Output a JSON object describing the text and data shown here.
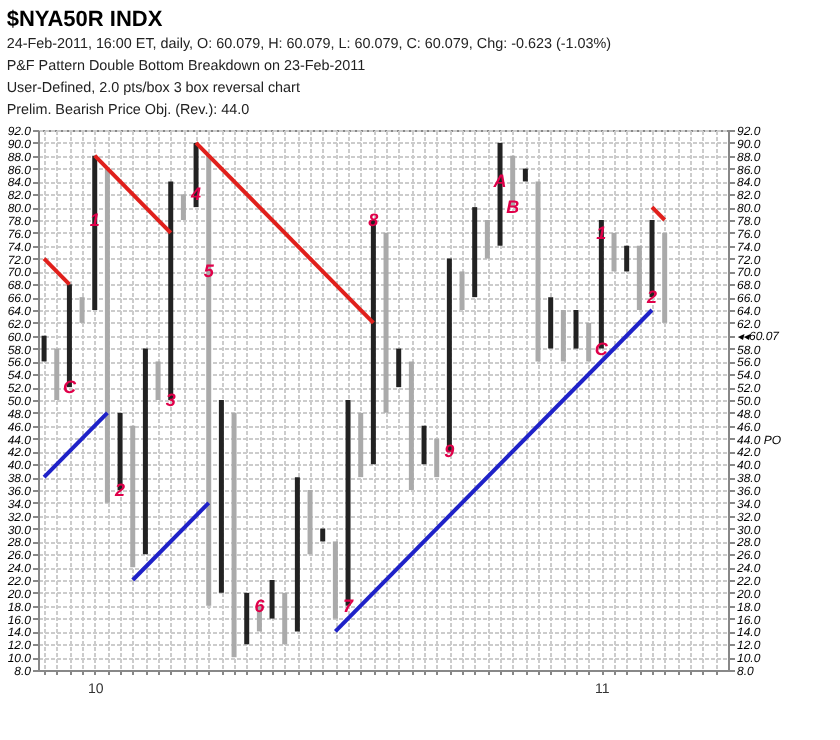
{
  "chart_data": {
    "type": "bar",
    "title": "$NYA50R INDX",
    "subtitle": [
      "24-Feb-2011, 16:00 ET, daily, O: 60.079, H: 60.079, L: 60.079, C: 60.079, Chg: -0.623 (-1.03%)",
      "P&F Pattern Double Bottom Breakdown on 23-Feb-2011",
      "User-Defined, 2.0 pts/box 3 box reversal chart",
      "Prelim. Bearish Price Obj. (Rev.): 44.0"
    ],
    "series": [
      {
        "x": [
          9.9,
          9.925,
          9.95,
          9.975,
          10,
          10.025,
          10.05,
          10.075,
          10.1,
          10.125,
          10.15,
          10.175,
          10.2,
          10.225,
          10.25,
          10.275,
          10.3,
          10.325,
          10.35,
          10.375,
          10.4,
          10.425,
          10.45,
          10.475,
          10.5,
          10.525,
          10.55,
          10.575,
          10.6,
          10.625,
          10.65,
          10.675,
          10.7,
          10.725,
          10.75,
          10.775,
          10.8,
          10.825,
          10.85,
          10.875,
          10.9,
          10.925,
          10.95,
          10.975,
          11,
          11.025,
          11.05,
          11.075,
          11.1,
          11.125
        ],
        "base": [
          56,
          50,
          52,
          62,
          64,
          34,
          36,
          24,
          26,
          50,
          50,
          78,
          80,
          18,
          20,
          10,
          12,
          14,
          16,
          12,
          14,
          26,
          28,
          16,
          18,
          38,
          40,
          48,
          52,
          36,
          40,
          38,
          42,
          64,
          66,
          72,
          74,
          80,
          84,
          56,
          58,
          56,
          58,
          56,
          58,
          70,
          70,
          64,
          66,
          62
        ],
        "values": [
          4,
          8,
          16,
          4,
          24,
          52,
          12,
          22,
          32,
          6,
          34,
          4,
          10,
          70,
          30,
          38,
          8,
          4,
          6,
          8,
          24,
          10,
          2,
          12,
          32,
          10,
          38,
          28,
          6,
          20,
          6,
          6,
          30,
          6,
          14,
          6,
          16,
          8,
          2,
          28,
          8,
          8,
          6,
          6,
          20,
          6,
          4,
          10,
          12,
          14
        ],
        "colors": [
          "#222222",
          "#aaaaaa",
          "#222222",
          "#aaaaaa",
          "#222222",
          "#aaaaaa",
          "#222222",
          "#aaaaaa",
          "#222222",
          "#aaaaaa",
          "#222222",
          "#aaaaaa",
          "#222222",
          "#aaaaaa",
          "#222222",
          "#aaaaaa",
          "#222222",
          "#aaaaaa",
          "#222222",
          "#aaaaaa",
          "#222222",
          "#aaaaaa",
          "#222222",
          "#aaaaaa",
          "#222222",
          "#aaaaaa",
          "#222222",
          "#aaaaaa",
          "#222222",
          "#aaaaaa",
          "#222222",
          "#aaaaaa",
          "#222222",
          "#aaaaaa",
          "#222222",
          "#aaaaaa",
          "#222222",
          "#aaaaaa",
          "#222222",
          "#aaaaaa",
          "#222222",
          "#aaaaaa",
          "#222222",
          "#aaaaaa",
          "#222222",
          "#aaaaaa",
          "#222222",
          "#aaaaaa",
          "#222222",
          "#aaaaaa"
        ]
      },
      {
        "type": "line",
        "color": "#e0201c",
        "x": [
          9.9,
          9.95
        ],
        "values": [
          72,
          68
        ]
      },
      {
        "type": "line",
        "color": "#e0201c",
        "x": [
          10,
          10.15
        ],
        "values": [
          88,
          76
        ]
      },
      {
        "type": "line",
        "color": "#e0201c",
        "x": [
          10.2,
          10.55
        ],
        "values": [
          90,
          62
        ]
      },
      {
        "type": "line",
        "color": "#e0201c",
        "x": [
          11.1,
          11.125
        ],
        "values": [
          80,
          78
        ]
      },
      {
        "type": "line",
        "color": "#1f22c8",
        "x": [
          9.9,
          10.025
        ],
        "values": [
          38,
          48
        ]
      },
      {
        "type": "line",
        "color": "#1f22c8",
        "x": [
          10.075,
          10.225
        ],
        "values": [
          22,
          34
        ]
      },
      {
        "type": "line",
        "color": "#1f22c8",
        "x": [
          10.475,
          11.1
        ],
        "values": [
          14,
          64
        ]
      }
    ],
    "annotations": [
      {
        "text": "C",
        "x": 9.95,
        "y": 52
      },
      {
        "text": "1",
        "x": 10,
        "y": 78
      },
      {
        "text": "2",
        "x": 10.05,
        "y": 36
      },
      {
        "text": "3",
        "x": 10.15,
        "y": 50
      },
      {
        "text": "4",
        "x": 10.2,
        "y": 82
      },
      {
        "text": "5",
        "x": 10.225,
        "y": 70
      },
      {
        "text": "6",
        "x": 10.325,
        "y": 18
      },
      {
        "text": "7",
        "x": 10.5,
        "y": 18
      },
      {
        "text": "8",
        "x": 10.55,
        "y": 78
      },
      {
        "text": "9",
        "x": 10.7,
        "y": 42
      },
      {
        "text": "A",
        "x": 10.8,
        "y": 84
      },
      {
        "text": "B",
        "x": 10.825,
        "y": 80
      },
      {
        "text": "C",
        "x": 11,
        "y": 58
      },
      {
        "text": "1",
        "x": 11,
        "y": 76
      },
      {
        "text": "2",
        "x": 11.1,
        "y": 66
      }
    ],
    "xlim": [
      9.888,
      11.25
    ],
    "xticks": [
      {
        "value": 9.9,
        "label": null
      },
      {
        "value": 9.925,
        "label": null
      },
      {
        "value": 9.95,
        "label": null
      },
      {
        "value": 9.975,
        "label": null
      },
      10,
      {
        "value": 10.025,
        "label": null
      },
      {
        "value": 10.05,
        "label": null
      },
      {
        "value": 10.075,
        "label": null
      },
      {
        "value": 10.1,
        "label": null
      },
      {
        "value": 10.125,
        "label": null
      },
      {
        "value": 10.15,
        "label": null
      },
      {
        "value": 10.175,
        "label": null
      },
      {
        "value": 10.2,
        "label": null
      },
      {
        "value": 10.225,
        "label": null
      },
      {
        "value": 10.25,
        "label": null
      },
      {
        "value": 10.275,
        "label": null
      },
      {
        "value": 10.3,
        "label": null
      },
      {
        "value": 10.325,
        "label": null
      },
      {
        "value": 10.35,
        "label": null
      },
      {
        "value": 10.375,
        "label": null
      },
      {
        "value": 10.4,
        "label": null
      },
      {
        "value": 10.425,
        "label": null
      },
      {
        "value": 10.45,
        "label": null
      },
      {
        "value": 10.475,
        "label": null
      },
      {
        "value": 10.5,
        "label": null
      },
      {
        "value": 10.525,
        "label": null
      },
      {
        "value": 10.55,
        "label": null
      },
      {
        "value": 10.575,
        "label": null
      },
      {
        "value": 10.6,
        "label": null
      },
      {
        "value": 10.625,
        "label": null
      },
      {
        "value": 10.65,
        "label": null
      },
      {
        "value": 10.675,
        "label": null
      },
      {
        "value": 10.7,
        "label": null
      },
      {
        "value": 10.725,
        "label": null
      },
      {
        "value": 10.75,
        "label": null
      },
      {
        "value": 10.775,
        "label": null
      },
      {
        "value": 10.8,
        "label": null
      },
      {
        "value": 10.825,
        "label": null
      },
      {
        "value": 10.85,
        "label": null
      },
      {
        "value": 10.875,
        "label": null
      },
      {
        "value": 10.9,
        "label": null
      },
      {
        "value": 10.925,
        "label": null
      },
      {
        "value": 10.95,
        "label": null
      },
      {
        "value": 10.975,
        "label": null
      },
      11,
      {
        "value": 11.025,
        "label": null
      },
      {
        "value": 11.05,
        "label": null
      },
      {
        "value": 11.075,
        "label": null
      },
      {
        "value": 11.1,
        "label": null
      },
      {
        "value": 11.125,
        "label": null
      },
      {
        "value": 11.15,
        "label": null
      },
      {
        "value": 11.175,
        "label": null
      },
      {
        "value": 11.2,
        "label": null
      },
      {
        "value": 11.225,
        "label": null
      }
    ],
    "ylim": [
      8,
      92
    ],
    "yticks": [
      {
        "value": 8,
        "label": "8.0"
      },
      {
        "value": 10,
        "label": "10.0"
      },
      {
        "value": 12,
        "label": "12.0"
      },
      {
        "value": 14,
        "label": "14.0"
      },
      {
        "value": 16,
        "label": "16.0"
      },
      {
        "value": 18,
        "label": "18.0"
      },
      {
        "value": 20,
        "label": "20.0"
      },
      {
        "value": 22,
        "label": "22.0"
      },
      {
        "value": 24,
        "label": "24.0"
      },
      {
        "value": 26,
        "label": "26.0"
      },
      {
        "value": 28,
        "label": "28.0"
      },
      {
        "value": 30,
        "label": "30.0"
      },
      {
        "value": 32,
        "label": "32.0"
      },
      {
        "value": 34,
        "label": "34.0"
      },
      {
        "value": 36,
        "label": "36.0"
      },
      {
        "value": 38,
        "label": "38.0"
      },
      {
        "value": 40,
        "label": "40.0"
      },
      {
        "value": 42,
        "label": "42.0"
      },
      {
        "value": 44,
        "label": "44.0"
      },
      {
        "value": 46,
        "label": "46.0"
      },
      {
        "value": 48,
        "label": "48.0"
      },
      {
        "value": 50,
        "label": "50.0"
      },
      {
        "value": 52,
        "label": "52.0"
      },
      {
        "value": 54,
        "label": "54.0"
      },
      {
        "value": 56,
        "label": "56.0"
      },
      {
        "value": 58,
        "label": "58.0"
      },
      {
        "value": 60,
        "label": "60.0"
      },
      {
        "value": 62,
        "label": "62.0"
      },
      {
        "value": 64,
        "label": "64.0"
      },
      {
        "value": 66,
        "label": "66.0"
      },
      {
        "value": 68,
        "label": "68.0"
      },
      {
        "value": 70,
        "label": "70.0"
      },
      {
        "value": 72,
        "label": "72.0"
      },
      {
        "value": 74,
        "label": "74.0"
      },
      {
        "value": 76,
        "label": "76.0"
      },
      {
        "value": 78,
        "label": "78.0"
      },
      {
        "value": 80,
        "label": "80.0"
      },
      {
        "value": 82,
        "label": "82.0"
      },
      {
        "value": 84,
        "label": "84.0"
      },
      {
        "value": 86,
        "label": "86.0"
      },
      {
        "value": 88,
        "label": "88.0"
      },
      {
        "value": 90,
        "label": "90.0"
      },
      {
        "value": 92,
        "label": "92.0"
      }
    ],
    "y2lim": [
      8,
      92
    ],
    "y2ticks": [
      {
        "value": 8,
        "label": "8.0"
      },
      {
        "value": 10,
        "label": "10.0"
      },
      {
        "value": 12,
        "label": "12.0"
      },
      {
        "value": 14,
        "label": "14.0"
      },
      {
        "value": 16,
        "label": "16.0"
      },
      {
        "value": 18,
        "label": "18.0"
      },
      {
        "value": 20,
        "label": "20.0"
      },
      {
        "value": 22,
        "label": "22.0"
      },
      {
        "value": 24,
        "label": "24.0"
      },
      {
        "value": 26,
        "label": "26.0"
      },
      {
        "value": 28,
        "label": "28.0"
      },
      {
        "value": 30,
        "label": "30.0"
      },
      {
        "value": 32,
        "label": "32.0"
      },
      {
        "value": 34,
        "label": "34.0"
      },
      {
        "value": 36,
        "label": "36.0"
      },
      {
        "value": 38,
        "label": "38.0"
      },
      {
        "value": 40,
        "label": "40.0"
      },
      {
        "value": 42,
        "label": "42.0"
      },
      {
        "value": 44,
        "label": "44.0 PO"
      },
      {
        "value": 46,
        "label": "46.0"
      },
      {
        "value": 48,
        "label": "48.0"
      },
      {
        "value": 50,
        "label": "50.0"
      },
      {
        "value": 52,
        "label": "52.0"
      },
      {
        "value": 54,
        "label": "54.0"
      },
      {
        "value": 56,
        "label": "56.0"
      },
      {
        "value": 58,
        "label": "58.0"
      },
      {
        "value": 60.07,
        "label": "◂◂60.07"
      },
      {
        "value": 62,
        "label": "62.0"
      },
      {
        "value": 64,
        "label": "64.0"
      },
      {
        "value": 66,
        "label": "66.0"
      },
      {
        "value": 68,
        "label": "68.0"
      },
      {
        "value": 70,
        "label": "70.0"
      },
      {
        "value": 72,
        "label": "72.0"
      },
      {
        "value": 74,
        "label": "74.0"
      },
      {
        "value": 76,
        "label": "76.0"
      },
      {
        "value": 78,
        "label": "78.0"
      },
      {
        "value": 80,
        "label": "80.0"
      },
      {
        "value": 82,
        "label": "82.0"
      },
      {
        "value": 84,
        "label": "84.0"
      },
      {
        "value": 86,
        "label": "86.0"
      },
      {
        "value": 88,
        "label": "88.0"
      },
      {
        "value": 90,
        "label": "90.0"
      },
      {
        "value": 92,
        "label": "92.0"
      }
    ],
    "grid": true
  }
}
